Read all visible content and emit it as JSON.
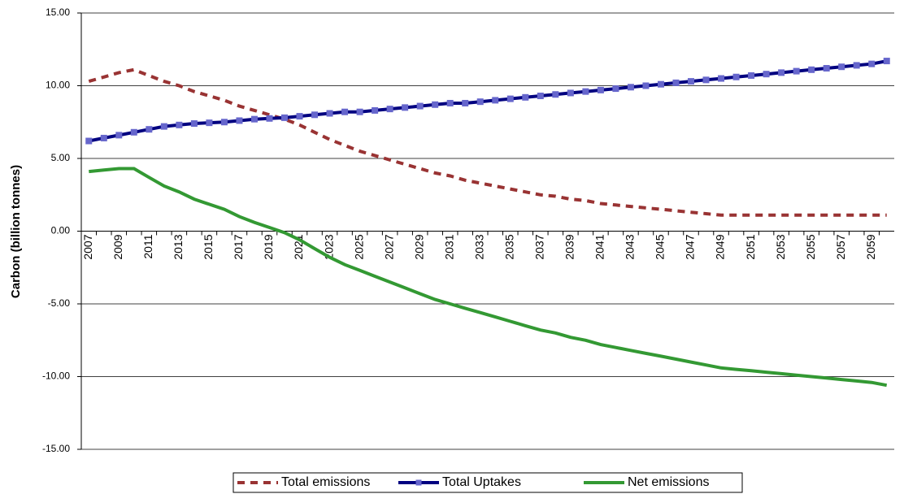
{
  "chart_data": {
    "type": "line",
    "y_label": "Carbon (billion tonnes)",
    "categories": [
      "2007",
      null,
      "2009",
      null,
      "2011",
      null,
      "2013",
      null,
      "2015",
      null,
      "2017",
      null,
      "2019",
      null,
      "2021",
      null,
      "2023",
      null,
      "2025",
      null,
      "2027",
      null,
      "2029",
      null,
      "2031",
      null,
      "2033",
      null,
      "2035",
      null,
      "2037",
      null,
      "2039",
      null,
      "2041",
      null,
      "2043",
      null,
      "2045",
      null,
      "2047",
      null,
      "2049",
      null,
      "2051",
      null,
      "2053",
      null,
      "2055",
      null,
      "2057",
      null,
      "2059",
      null
    ],
    "series": [
      {
        "name": "Total emissions",
        "color": "#993333",
        "dash": true,
        "values": [
          10.3,
          10.6,
          10.9,
          11.1,
          10.7,
          10.3,
          10.0,
          9.6,
          9.3,
          9.0,
          8.6,
          8.3,
          8.0,
          7.7,
          7.3,
          6.8,
          6.3,
          5.9,
          5.5,
          5.2,
          4.9,
          4.6,
          4.3,
          4.0,
          3.8,
          3.5,
          3.3,
          3.1,
          2.9,
          2.7,
          2.5,
          2.4,
          2.2,
          2.1,
          1.9,
          1.8,
          1.7,
          1.6,
          1.5,
          1.4,
          1.3,
          1.2,
          1.1,
          1.1,
          1.1,
          1.1,
          1.1,
          1.1,
          1.1,
          1.1,
          1.1,
          1.1,
          1.1,
          1.1
        ]
      },
      {
        "name": "Total Uptakes",
        "color": "#000080",
        "marker": "square",
        "marker_color": "#6666cc",
        "values": [
          6.2,
          6.4,
          6.6,
          6.8,
          7.0,
          7.2,
          7.3,
          7.4,
          7.45,
          7.5,
          7.6,
          7.7,
          7.75,
          7.8,
          7.9,
          8.0,
          8.1,
          8.2,
          8.2,
          8.3,
          8.4,
          8.5,
          8.6,
          8.7,
          8.8,
          8.8,
          8.9,
          9.0,
          9.1,
          9.2,
          9.3,
          9.4,
          9.5,
          9.6,
          9.7,
          9.8,
          9.9,
          10.0,
          10.1,
          10.2,
          10.3,
          10.4,
          10.5,
          10.6,
          10.7,
          10.8,
          10.9,
          11.0,
          11.1,
          11.2,
          11.3,
          11.4,
          11.5,
          11.7
        ]
      },
      {
        "name": "Net emissions",
        "color": "#339933",
        "values": [
          4.1,
          4.2,
          4.3,
          4.3,
          3.7,
          3.1,
          2.7,
          2.2,
          1.85,
          1.5,
          1.0,
          0.6,
          0.25,
          -0.1,
          -0.6,
          -1.2,
          -1.8,
          -2.3,
          -2.7,
          -3.1,
          -3.5,
          -3.9,
          -4.3,
          -4.7,
          -5.0,
          -5.3,
          -5.6,
          -5.9,
          -6.2,
          -6.5,
          -6.8,
          -7.0,
          -7.3,
          -7.5,
          -7.8,
          -8.0,
          -8.2,
          -8.4,
          -8.6,
          -8.8,
          -9.0,
          -9.2,
          -9.4,
          -9.5,
          -9.6,
          -9.7,
          -9.8,
          -9.9,
          -10.0,
          -10.1,
          -10.2,
          -10.3,
          -10.4,
          -10.6
        ]
      }
    ],
    "ylim": [
      -15,
      15
    ],
    "yticks": [
      {
        "value": -15,
        "label": "-15.00"
      },
      {
        "value": -10,
        "label": "-10.00"
      },
      {
        "value": -5,
        "label": "-5.00"
      },
      {
        "value": 0,
        "label": "0.00"
      },
      {
        "value": 5,
        "label": "5.00"
      },
      {
        "value": 10,
        "label": "10.00"
      },
      {
        "value": 15,
        "label": "15.00"
      }
    ],
    "grid": true,
    "legend": "bottom"
  }
}
